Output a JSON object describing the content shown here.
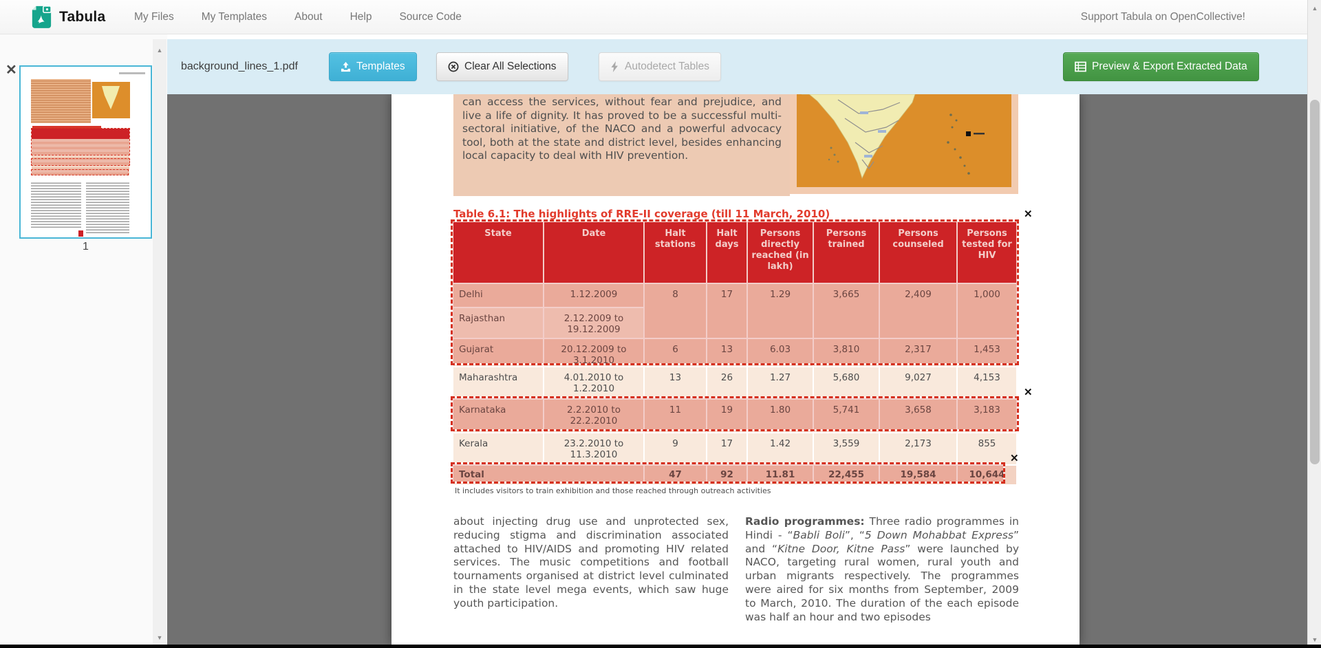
{
  "navbar": {
    "brand": "Tabula",
    "items": [
      "My Files",
      "My Templates",
      "About",
      "Help",
      "Source Code"
    ],
    "support_link": "Support Tabula on OpenCollective!"
  },
  "toolbar": {
    "filename": "background_lines_1.pdf",
    "templates": "Templates",
    "clear": "Clear All Selections",
    "autodetect": "Autodetect Tables",
    "export": "Preview & Export Extracted Data"
  },
  "sidebar": {
    "page_label": "1",
    "close_icon": "✕"
  },
  "icons": {
    "selection_close": "✕",
    "scroll_up": "▲",
    "scroll_down": "▼"
  },
  "colors": {
    "toolbar_bg": "#d9ecf5",
    "accent_blue": "#45b8dc",
    "accent_green": "#46a246",
    "table_header_red": "#ce2029",
    "selection_red": "#d5301f",
    "page_block_tan": "#edcab3",
    "map_orange": "#dc8e2a"
  },
  "document": {
    "top_paragraph": "can access the services, without fear and prejudice, and live a life of dignity. It has proved to be a successful multi-sectoral initiative, of the NACO and a powerful advocacy tool, both at the state and district level, besides enhancing local capacity to deal with HIV prevention.",
    "table_title": "Table 6.1: The highlights of RRE-II coverage (till 11 March, 2010)",
    "footnote": "It includes visitors to train exhibition and those reached through outreach activities",
    "left_paragraph": "about injecting drug use and unprotected sex, reducing stigma and discrimination associated attached to HIV/AIDS and promoting HIV related services. The music competitions and football tournaments organised at district level culminated in the state level mega events, which saw huge youth participation.",
    "right_paragraph_segments": [
      {
        "t": "Radio programmes:",
        "b": true
      },
      {
        "t": " Three radio programmes in Hindi - “"
      },
      {
        "t": "Babli Boli",
        "i": true
      },
      {
        "t": "”, “"
      },
      {
        "t": "5 Down Mohabbat Express",
        "i": true
      },
      {
        "t": "” and “"
      },
      {
        "t": "Kitne Door, Kitne Pass",
        "i": true
      },
      {
        "t": "” were launched by NACO, targeting rural women, rural youth and urban migrants respectively. The programmes were aired for six months from September, 2009 to March, 2010. The duration of the each episode was half an hour and two episodes"
      }
    ]
  },
  "table": {
    "headers": [
      "State",
      "Date",
      "Halt stations",
      "Halt days",
      "Persons directly reached (in lakh)",
      "Persons trained",
      "Persons counseled",
      "Persons tested for HIV"
    ],
    "rows": [
      {
        "state": "Delhi",
        "date": "1.12.2009",
        "halt_stations": "8",
        "halt_days": "17",
        "reached": "1.29",
        "trained": "3,665",
        "counseled": "2,409",
        "tested": "1,000",
        "merge_with_next": true
      },
      {
        "state": "Rajasthan",
        "date": "2.12.2009 to 19.12.2009",
        "merged": true
      },
      {
        "state": "Gujarat",
        "date": "20.12.2009 to 3.1.2010",
        "halt_stations": "6",
        "halt_days": "13",
        "reached": "6.03",
        "trained": "3,810",
        "counseled": "2,317",
        "tested": "1,453"
      },
      {
        "state": "Maharashtra",
        "date": "4.01.2010 to 1.2.2010",
        "halt_stations": "13",
        "halt_days": "26",
        "reached": "1.27",
        "trained": "5,680",
        "counseled": "9,027",
        "tested": "4,153"
      },
      {
        "state": "Karnataka",
        "date": "2.2.2010 to 22.2.2010",
        "halt_stations": "11",
        "halt_days": "19",
        "reached": "1.80",
        "trained": "5,741",
        "counseled": "3,658",
        "tested": "3,183"
      },
      {
        "state": "Kerala",
        "date": "23.2.2010 to 11.3.2010",
        "halt_stations": "9",
        "halt_days": "17",
        "reached": "1.42",
        "trained": "3,559",
        "counseled": "2,173",
        "tested": "855"
      },
      {
        "state": "Total",
        "total": true,
        "halt_stations": "47",
        "halt_days": "92",
        "reached": "11.81",
        "trained": "22,455",
        "counseled": "19,584",
        "tested": "10,644"
      }
    ]
  }
}
